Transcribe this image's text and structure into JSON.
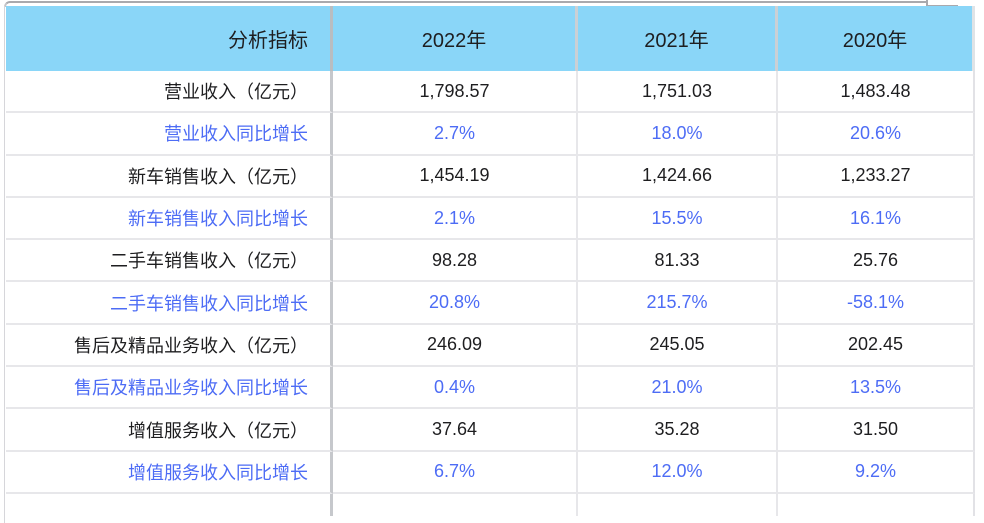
{
  "colors": {
    "header_bg": "#8ad6f8",
    "text_dark": "#1e1e20",
    "text_growth": "#4d6cf5",
    "grid_light": "#e7e7ea",
    "grid_dark": "#c6c8cc"
  },
  "chart_data": {
    "type": "table",
    "title": "",
    "columns": [
      "分析指标",
      "2022年",
      "2021年",
      "2020年"
    ],
    "rows": [
      {
        "label": "营业收入（亿元）",
        "style": "value",
        "values": [
          "1,798.57",
          "1,751.03",
          "1,483.48"
        ]
      },
      {
        "label": "营业收入同比增长",
        "style": "growth",
        "values": [
          "2.7%",
          "18.0%",
          "20.6%"
        ]
      },
      {
        "label": "新车销售收入（亿元）",
        "style": "value",
        "values": [
          "1,454.19",
          "1,424.66",
          "1,233.27"
        ]
      },
      {
        "label": "新车销售收入同比增长",
        "style": "growth",
        "values": [
          "2.1%",
          "15.5%",
          "16.1%"
        ]
      },
      {
        "label": "二手车销售收入（亿元）",
        "style": "value",
        "values": [
          "98.28",
          "81.33",
          "25.76"
        ]
      },
      {
        "label": "二手车销售收入同比增长",
        "style": "growth",
        "values": [
          "20.8%",
          "215.7%",
          "-58.1%"
        ]
      },
      {
        "label": "售后及精品业务收入（亿元）",
        "style": "value",
        "values": [
          "246.09",
          "245.05",
          "202.45"
        ]
      },
      {
        "label": "售后及精品业务收入同比增长",
        "style": "growth",
        "values": [
          "0.4%",
          "21.0%",
          "13.5%"
        ]
      },
      {
        "label": "增值服务收入（亿元）",
        "style": "value",
        "values": [
          "37.64",
          "35.28",
          "31.50"
        ]
      },
      {
        "label": "增值服务收入同比增长",
        "style": "growth",
        "values": [
          "6.7%",
          "12.0%",
          "9.2%"
        ]
      }
    ]
  }
}
